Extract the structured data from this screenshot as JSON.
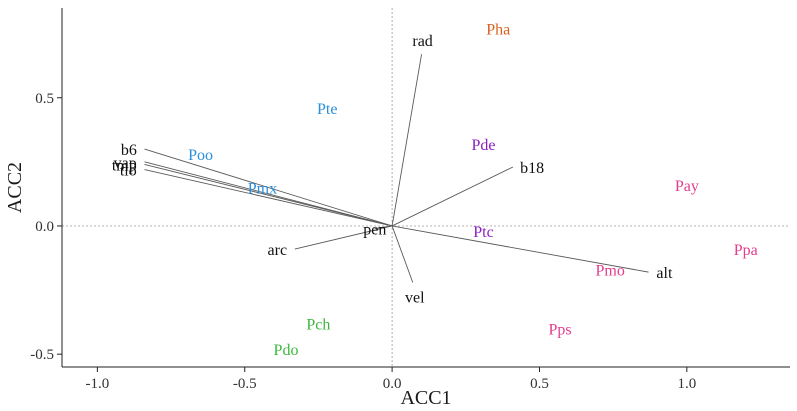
{
  "chart_data": {
    "type": "scatter",
    "xlabel": "ACC1",
    "ylabel": "ACC2",
    "xlim": [
      -1.12,
      1.35
    ],
    "ylim": [
      -0.55,
      0.85
    ],
    "x_ticks": [
      {
        "value": -1.0,
        "label": "-1.0"
      },
      {
        "value": -0.5,
        "label": "-0.5"
      },
      {
        "value": 0.0,
        "label": "0.0"
      },
      {
        "value": 0.5,
        "label": "0.5"
      },
      {
        "value": 1.0,
        "label": "1.0"
      }
    ],
    "y_ticks": [
      {
        "value": -0.5,
        "label": "-0.5"
      },
      {
        "value": 0.0,
        "label": "0.0"
      },
      {
        "value": 0.5,
        "label": "0.5"
      }
    ],
    "reference_lines": {
      "x": 0,
      "y": 0,
      "style": "dotted"
    },
    "vectors": [
      {
        "label": "rad",
        "x": 0.1,
        "y": 0.67
      },
      {
        "label": "b18",
        "x": 0.41,
        "y": 0.23
      },
      {
        "label": "b6",
        "x": -0.84,
        "y": 0.3
      },
      {
        "label": "vap",
        "x": -0.84,
        "y": 0.25
      },
      {
        "label": "tmp",
        "x": -0.84,
        "y": 0.24
      },
      {
        "label": "tlo",
        "x": -0.84,
        "y": 0.22
      },
      {
        "label": "arc",
        "x": -0.33,
        "y": -0.09
      },
      {
        "label": "pen",
        "x": -0.06,
        "y": -0.01
      },
      {
        "label": "vel",
        "x": 0.07,
        "y": -0.22
      },
      {
        "label": "alt",
        "x": 0.87,
        "y": -0.18
      }
    ],
    "points": [
      {
        "label": "Pha",
        "x": 0.36,
        "y": 0.77,
        "color": "#d95f1e"
      },
      {
        "label": "Pte",
        "x": -0.22,
        "y": 0.46,
        "color": "#2b8fd9"
      },
      {
        "label": "Poo",
        "x": -0.65,
        "y": 0.28,
        "color": "#2b8fd9"
      },
      {
        "label": "Pmx",
        "x": -0.44,
        "y": 0.15,
        "color": "#2b8fd9"
      },
      {
        "label": "Pde",
        "x": 0.31,
        "y": 0.32,
        "color": "#8b1fbf"
      },
      {
        "label": "Ptc",
        "x": 0.31,
        "y": -0.02,
        "color": "#8b1fbf"
      },
      {
        "label": "Pay",
        "x": 1.0,
        "y": 0.16,
        "color": "#e33d8f"
      },
      {
        "label": "Ppa",
        "x": 1.2,
        "y": -0.09,
        "color": "#e33d8f"
      },
      {
        "label": "Pmo",
        "x": 0.74,
        "y": -0.17,
        "color": "#e33d8f"
      },
      {
        "label": "Pps",
        "x": 0.57,
        "y": -0.4,
        "color": "#e33d8f"
      },
      {
        "label": "Pch",
        "x": -0.25,
        "y": -0.38,
        "color": "#3cb83c"
      },
      {
        "label": "Pdo",
        "x": -0.36,
        "y": -0.48,
        "color": "#3cb83c"
      }
    ]
  }
}
